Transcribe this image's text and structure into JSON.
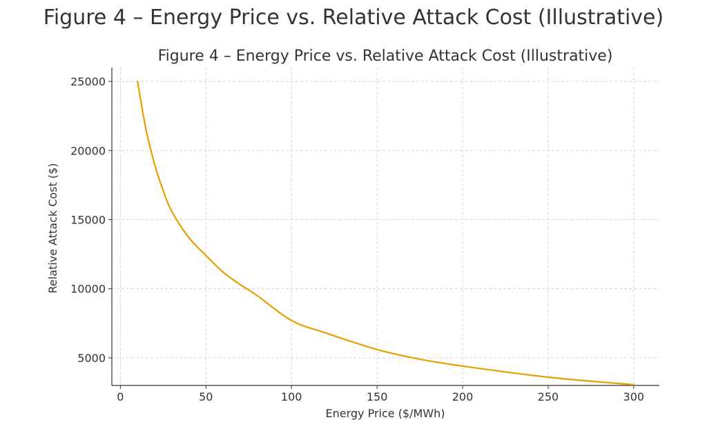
{
  "figure": {
    "title": "Figure 4 – Energy Price vs. Relative Attack Cost (Illustrative)"
  },
  "chart_data": {
    "type": "line",
    "title": "Figure 4 – Energy Price vs. Relative Attack Cost (Illustrative)",
    "xlabel": "Energy Price ($/MWh)",
    "ylabel": "Relative Attack Cost ($)",
    "xlim": [
      -5,
      315
    ],
    "ylim": [
      3000,
      26000
    ],
    "xticks": [
      0,
      50,
      100,
      150,
      200,
      250,
      300
    ],
    "yticks": [
      5000,
      10000,
      15000,
      20000,
      25000
    ],
    "grid": true,
    "legend": "none",
    "series": [
      {
        "color": "#E69F00",
        "x": [
          10,
          15,
          20,
          25,
          30,
          40,
          50,
          60,
          70,
          80,
          100,
          120,
          150,
          175,
          200,
          250,
          300
        ],
        "y": [
          25000,
          21500,
          19000,
          17100,
          15600,
          13700,
          12400,
          11200,
          10300,
          9500,
          7700,
          6800,
          5600,
          4900,
          4400,
          3600,
          3050
        ]
      }
    ]
  }
}
